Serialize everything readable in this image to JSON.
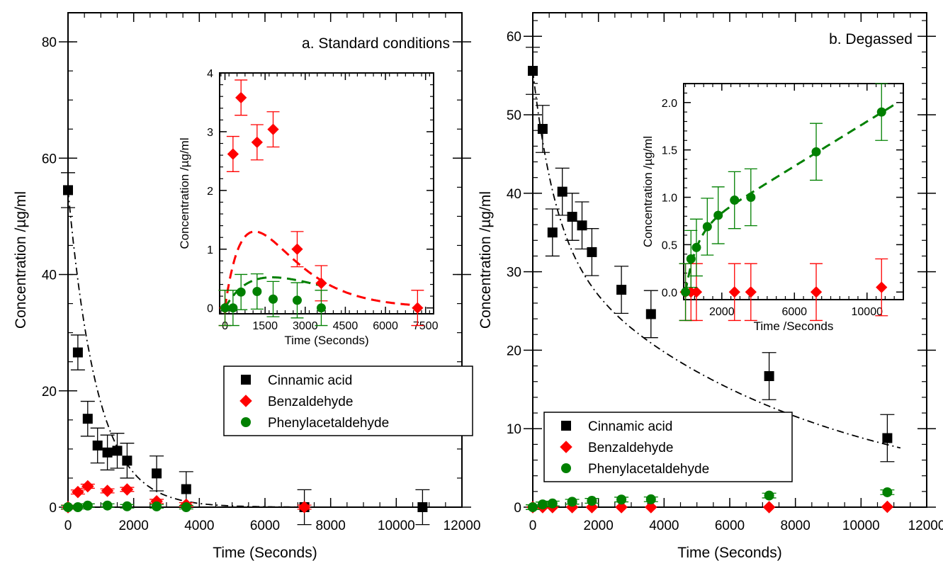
{
  "series_styles": {
    "cinnamic": {
      "color": "#000000",
      "marker": "square"
    },
    "benz": {
      "color": "#ff0000",
      "marker": "diamond"
    },
    "phenyl": {
      "color": "#008000",
      "marker": "circle"
    }
  },
  "chart_data": [
    {
      "type": "scatter",
      "id": "a",
      "title": "a. Standard conditions",
      "xlabel": "Time (Seconds)",
      "ylabel": "Concentration /µg/ml",
      "xlim": [
        0,
        12000
      ],
      "ylim": [
        0,
        85
      ],
      "xticks": [
        0,
        2000,
        4000,
        6000,
        8000,
        10000,
        12000
      ],
      "yticks": [
        0,
        20,
        40,
        60,
        80
      ],
      "legend": {
        "position": "center",
        "entries": [
          {
            "key": "cinnamic",
            "label": "Cinnamic acid"
          },
          {
            "key": "benz",
            "label": "Benzaldehyde"
          },
          {
            "key": "phenyl",
            "label": "Phenylacetaldehyde"
          }
        ]
      },
      "series": [
        {
          "key": "cinnamic",
          "name": "Cinnamic acid",
          "error": 3,
          "x": [
            0,
            300,
            600,
            900,
            1200,
            1500,
            1800,
            2700,
            3600,
            7200,
            10800
          ],
          "y": [
            54.5,
            26.6,
            15.2,
            10.6,
            9.4,
            9.7,
            8.0,
            5.8,
            3.1,
            0.0,
            0.0
          ]
        },
        {
          "key": "benz",
          "name": "Benzaldehyde",
          "error": 0.35,
          "x": [
            0,
            300,
            600,
            1200,
            1800,
            2700,
            3600,
            7200
          ],
          "y": [
            0.0,
            2.6,
            3.6,
            2.8,
            3.05,
            1.0,
            0.43,
            0.0
          ]
        },
        {
          "key": "phenyl",
          "name": "Phenylacetaldehyde",
          "error": 0.3,
          "x": [
            0,
            300,
            600,
            1200,
            1800,
            2700,
            3600
          ],
          "y": [
            0.0,
            0.0,
            0.27,
            0.28,
            0.15,
            0.13,
            0.0
          ]
        }
      ],
      "fits": [
        {
          "key": "cinnamic",
          "style": "dash-dot",
          "x_range": [
            0,
            8000
          ]
        }
      ],
      "inset": {
        "xlabel": "Time (Seconds)",
        "ylabel": "Concentration /µg/ml",
        "xlim": [
          -200,
          7800
        ],
        "ylim": [
          -0.1,
          4.0
        ],
        "xticks": [
          0,
          1500,
          3000,
          4500,
          6000,
          7500
        ],
        "yticks": [
          0,
          1,
          2,
          3,
          4
        ],
        "series": [
          {
            "key": "benz",
            "error": 0.3,
            "x": [
              0,
              300,
              600,
              1200,
              1800,
              2700,
              3600,
              7200
            ],
            "y": [
              0.0,
              2.62,
              3.58,
              2.82,
              3.04,
              1.0,
              0.42,
              0.0
            ]
          },
          {
            "key": "phenyl",
            "error": 0.3,
            "x": [
              0,
              300,
              600,
              1200,
              1800,
              2700,
              3600
            ],
            "y": [
              0.0,
              0.0,
              0.27,
              0.28,
              0.15,
              0.13,
              0.0
            ]
          }
        ],
        "fits": [
          {
            "key": "benz",
            "style": "dashed",
            "x_range": [
              0,
              7200
            ]
          },
          {
            "key": "phenyl",
            "style": "dashed",
            "x_range": [
              0,
              3600
            ]
          }
        ]
      }
    },
    {
      "type": "scatter",
      "id": "b",
      "title": "b. Degassed",
      "xlabel": "Time (Seconds)",
      "ylabel": "Concentration /µg/ml",
      "xlim": [
        0,
        12000
      ],
      "ylim": [
        0,
        63
      ],
      "xticks": [
        0,
        2000,
        4000,
        6000,
        8000,
        10000,
        12000
      ],
      "yticks": [
        0,
        10,
        20,
        30,
        40,
        50,
        60
      ],
      "legend": {
        "position": "bottom-left",
        "entries": [
          {
            "key": "cinnamic",
            "label": "Cinnamic acid"
          },
          {
            "key": "benz",
            "label": "Benzaldehyde"
          },
          {
            "key": "phenyl",
            "label": "Phenylacetaldehyde"
          }
        ]
      },
      "series": [
        {
          "key": "cinnamic",
          "name": "Cinnamic acid",
          "error": 3,
          "x": [
            0,
            300,
            600,
            900,
            1200,
            1500,
            1800,
            2700,
            3600,
            7200,
            10800
          ],
          "y": [
            55.6,
            48.2,
            35.0,
            40.2,
            37.0,
            35.9,
            32.5,
            27.7,
            24.6,
            16.7,
            8.8
          ]
        },
        {
          "key": "benz",
          "name": "Benzaldehyde",
          "error": 0,
          "x": [
            0,
            300,
            600,
            1200,
            1800,
            2700,
            3600,
            7200,
            10800
          ],
          "y": [
            0.0,
            0.0,
            0.0,
            0.0,
            0.0,
            0.0,
            0.0,
            0.0,
            0.05
          ]
        },
        {
          "key": "phenyl",
          "name": "Phenylacetaldehyde",
          "error": 0.3,
          "x": [
            0,
            300,
            600,
            1200,
            1800,
            2700,
            3600,
            7200,
            10800
          ],
          "y": [
            0.0,
            0.35,
            0.47,
            0.69,
            0.81,
            0.97,
            1.0,
            1.48,
            1.9
          ]
        }
      ],
      "fits": [
        {
          "key": "cinnamic",
          "style": "dash-dot",
          "x_range": [
            0,
            11200
          ]
        }
      ],
      "inset": {
        "xlabel": "Time /Seconds",
        "ylabel": "Concentration /µg/ml",
        "xlim": [
          -100,
          12000
        ],
        "ylim": [
          -0.08,
          2.2
        ],
        "xticks": [
          2000,
          6000,
          10000
        ],
        "yticks": [
          0.0,
          0.5,
          1.0,
          1.5,
          2.0
        ],
        "series": [
          {
            "key": "benz",
            "error": 0.3,
            "x": [
              0,
              300,
              600,
              2700,
              3600,
              7200,
              10800
            ],
            "y": [
              0.0,
              0.0,
              0.0,
              0.0,
              0.0,
              0.0,
              0.05
            ]
          },
          {
            "key": "phenyl",
            "error": 0.3,
            "x": [
              0,
              300,
              600,
              1200,
              1800,
              2700,
              3600,
              7200,
              10800
            ],
            "y": [
              0.0,
              0.35,
              0.47,
              0.69,
              0.81,
              0.97,
              1.0,
              1.48,
              1.9
            ]
          }
        ],
        "fits": [
          {
            "key": "phenyl",
            "style": "dashed",
            "x_range": [
              0,
              11500
            ]
          }
        ]
      }
    }
  ]
}
